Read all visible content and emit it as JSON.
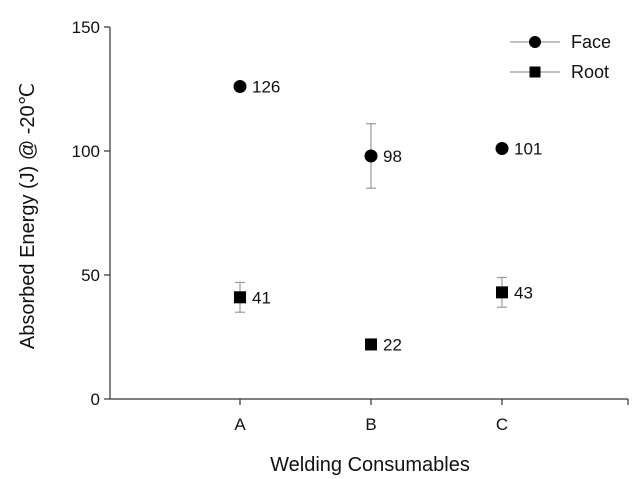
{
  "chart_data": {
    "type": "scatter",
    "categories": [
      "A",
      "B",
      "C"
    ],
    "xlabel": "Welding Consumables",
    "ylabel": "Absorbed Energy (J) @ -20℃",
    "ylim": [
      0,
      150
    ],
    "yticks": [
      "0",
      "50",
      "100",
      "150"
    ],
    "grid": false,
    "legend_position": "top-right",
    "series": [
      {
        "name": "Face",
        "marker": "circle",
        "values": [
          126,
          98,
          101
        ],
        "error": [
          null,
          [
            85,
            111
          ],
          null
        ],
        "labels": [
          "126",
          "98",
          "101"
        ]
      },
      {
        "name": "Root",
        "marker": "square",
        "values": [
          41,
          22,
          43
        ],
        "error": [
          [
            35,
            47
          ],
          null,
          [
            37,
            49
          ]
        ],
        "labels": [
          "41",
          "22",
          "43"
        ]
      }
    ],
    "colors": {
      "marker": "#000000",
      "axis": "#333333",
      "errorbar": "#9a9a9a"
    }
  }
}
